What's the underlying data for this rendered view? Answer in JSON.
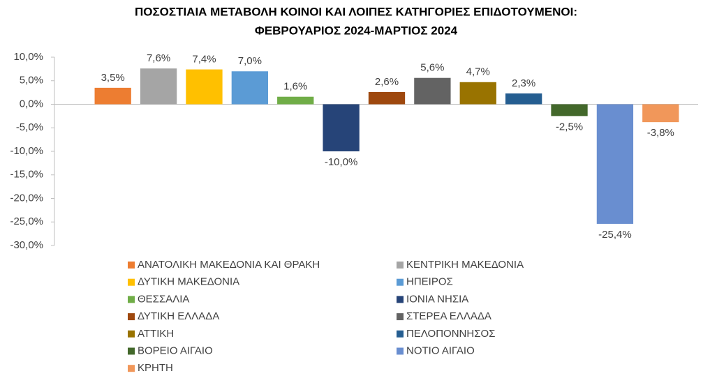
{
  "chart_data": {
    "type": "bar",
    "title": [
      "ΠΟΣΟΣΤΙΑΙΑ ΜΕΤΑΒΟΛΗ ΚΟΙΝΟΙ ΚΑΙ ΛΟΙΠΕΣ ΚΑΤΗΓΟΡΙΕΣ ΕΠΙΔΟΤΟΥΜΕΝΟΙ:",
      "ΦΕΒΡΟΥΑΡΙΟΣ 2024-ΜΑΡΤΙΟΣ 2024"
    ],
    "ylim": [
      -30,
      10
    ],
    "yticks": [
      {
        "value": 10,
        "label": "10,0%"
      },
      {
        "value": 5,
        "label": "5,0%"
      },
      {
        "value": 0,
        "label": "0,0%"
      },
      {
        "value": -5,
        "label": "-5,0%"
      },
      {
        "value": -10,
        "label": "-10,0%"
      },
      {
        "value": -15,
        "label": "-15,0%"
      },
      {
        "value": -20,
        "label": "-20,0%"
      },
      {
        "value": -25,
        "label": "-25,0%"
      },
      {
        "value": -30,
        "label": "-30,0%"
      }
    ],
    "legend": "bottom",
    "series": [
      {
        "name": "ΑΝΑΤΟΛΙΚΗ ΜΑΚΕΔΟΝΙΑ ΚΑΙ ΘΡΑΚΗ",
        "color": "#ED7D31",
        "values": [
          3.5
        ],
        "value_labels": [
          "3,5%"
        ]
      },
      {
        "name": "ΚΕΝΤΡΙΚΗ ΜΑΚΕΔΟΝΙΑ",
        "color": "#A5A5A5",
        "values": [
          7.6
        ],
        "value_labels": [
          "7,6%"
        ]
      },
      {
        "name": "ΔΥΤΙΚΗ ΜΑΚΕΔΟΝΙΑ",
        "color": "#FFC000",
        "values": [
          7.4
        ],
        "value_labels": [
          "7,4%"
        ]
      },
      {
        "name": "ΗΠΕΙΡΟΣ",
        "color": "#5B9BD5",
        "values": [
          7.0
        ],
        "value_labels": [
          "7,0%"
        ]
      },
      {
        "name": "ΘΕΣΣΑΛΙΑ",
        "color": "#70AD47",
        "values": [
          1.6
        ],
        "value_labels": [
          "1,6%"
        ]
      },
      {
        "name": "ΙΟΝΙΑ ΝΗΣΙΑ",
        "color": "#264478",
        "values": [
          -10.0
        ],
        "value_labels": [
          "-10,0%"
        ]
      },
      {
        "name": "ΔΥΤΙΚΗ ΕΛΛΑΔΑ",
        "color": "#9E480E",
        "values": [
          2.6
        ],
        "value_labels": [
          "2,6%"
        ]
      },
      {
        "name": "ΣΤΕΡΕΑ ΕΛΛΑΔΑ",
        "color": "#636363",
        "values": [
          5.6
        ],
        "value_labels": [
          "5,6%"
        ]
      },
      {
        "name": "ΑΤΤΙΚΗ",
        "color": "#997300",
        "values": [
          4.7
        ],
        "value_labels": [
          "4,7%"
        ]
      },
      {
        "name": "ΠΕΛΟΠΟΝΝΗΣΟΣ",
        "color": "#255E91",
        "values": [
          2.3
        ],
        "value_labels": [
          "2,3%"
        ]
      },
      {
        "name": "ΒΟΡΕΙΟ ΑΙΓΑΙΟ",
        "color": "#43682B",
        "values": [
          -2.5
        ],
        "value_labels": [
          "-2,5%"
        ]
      },
      {
        "name": "ΝΟΤΙΟ ΑΙΓΑΙΟ",
        "color": "#698ED0",
        "values": [
          -25.4
        ],
        "value_labels": [
          "-25,4%"
        ]
      },
      {
        "name": "ΚΡΗΤΗ",
        "color": "#F1975A",
        "values": [
          -3.8
        ],
        "value_labels": [
          "-3,8%"
        ]
      }
    ]
  }
}
